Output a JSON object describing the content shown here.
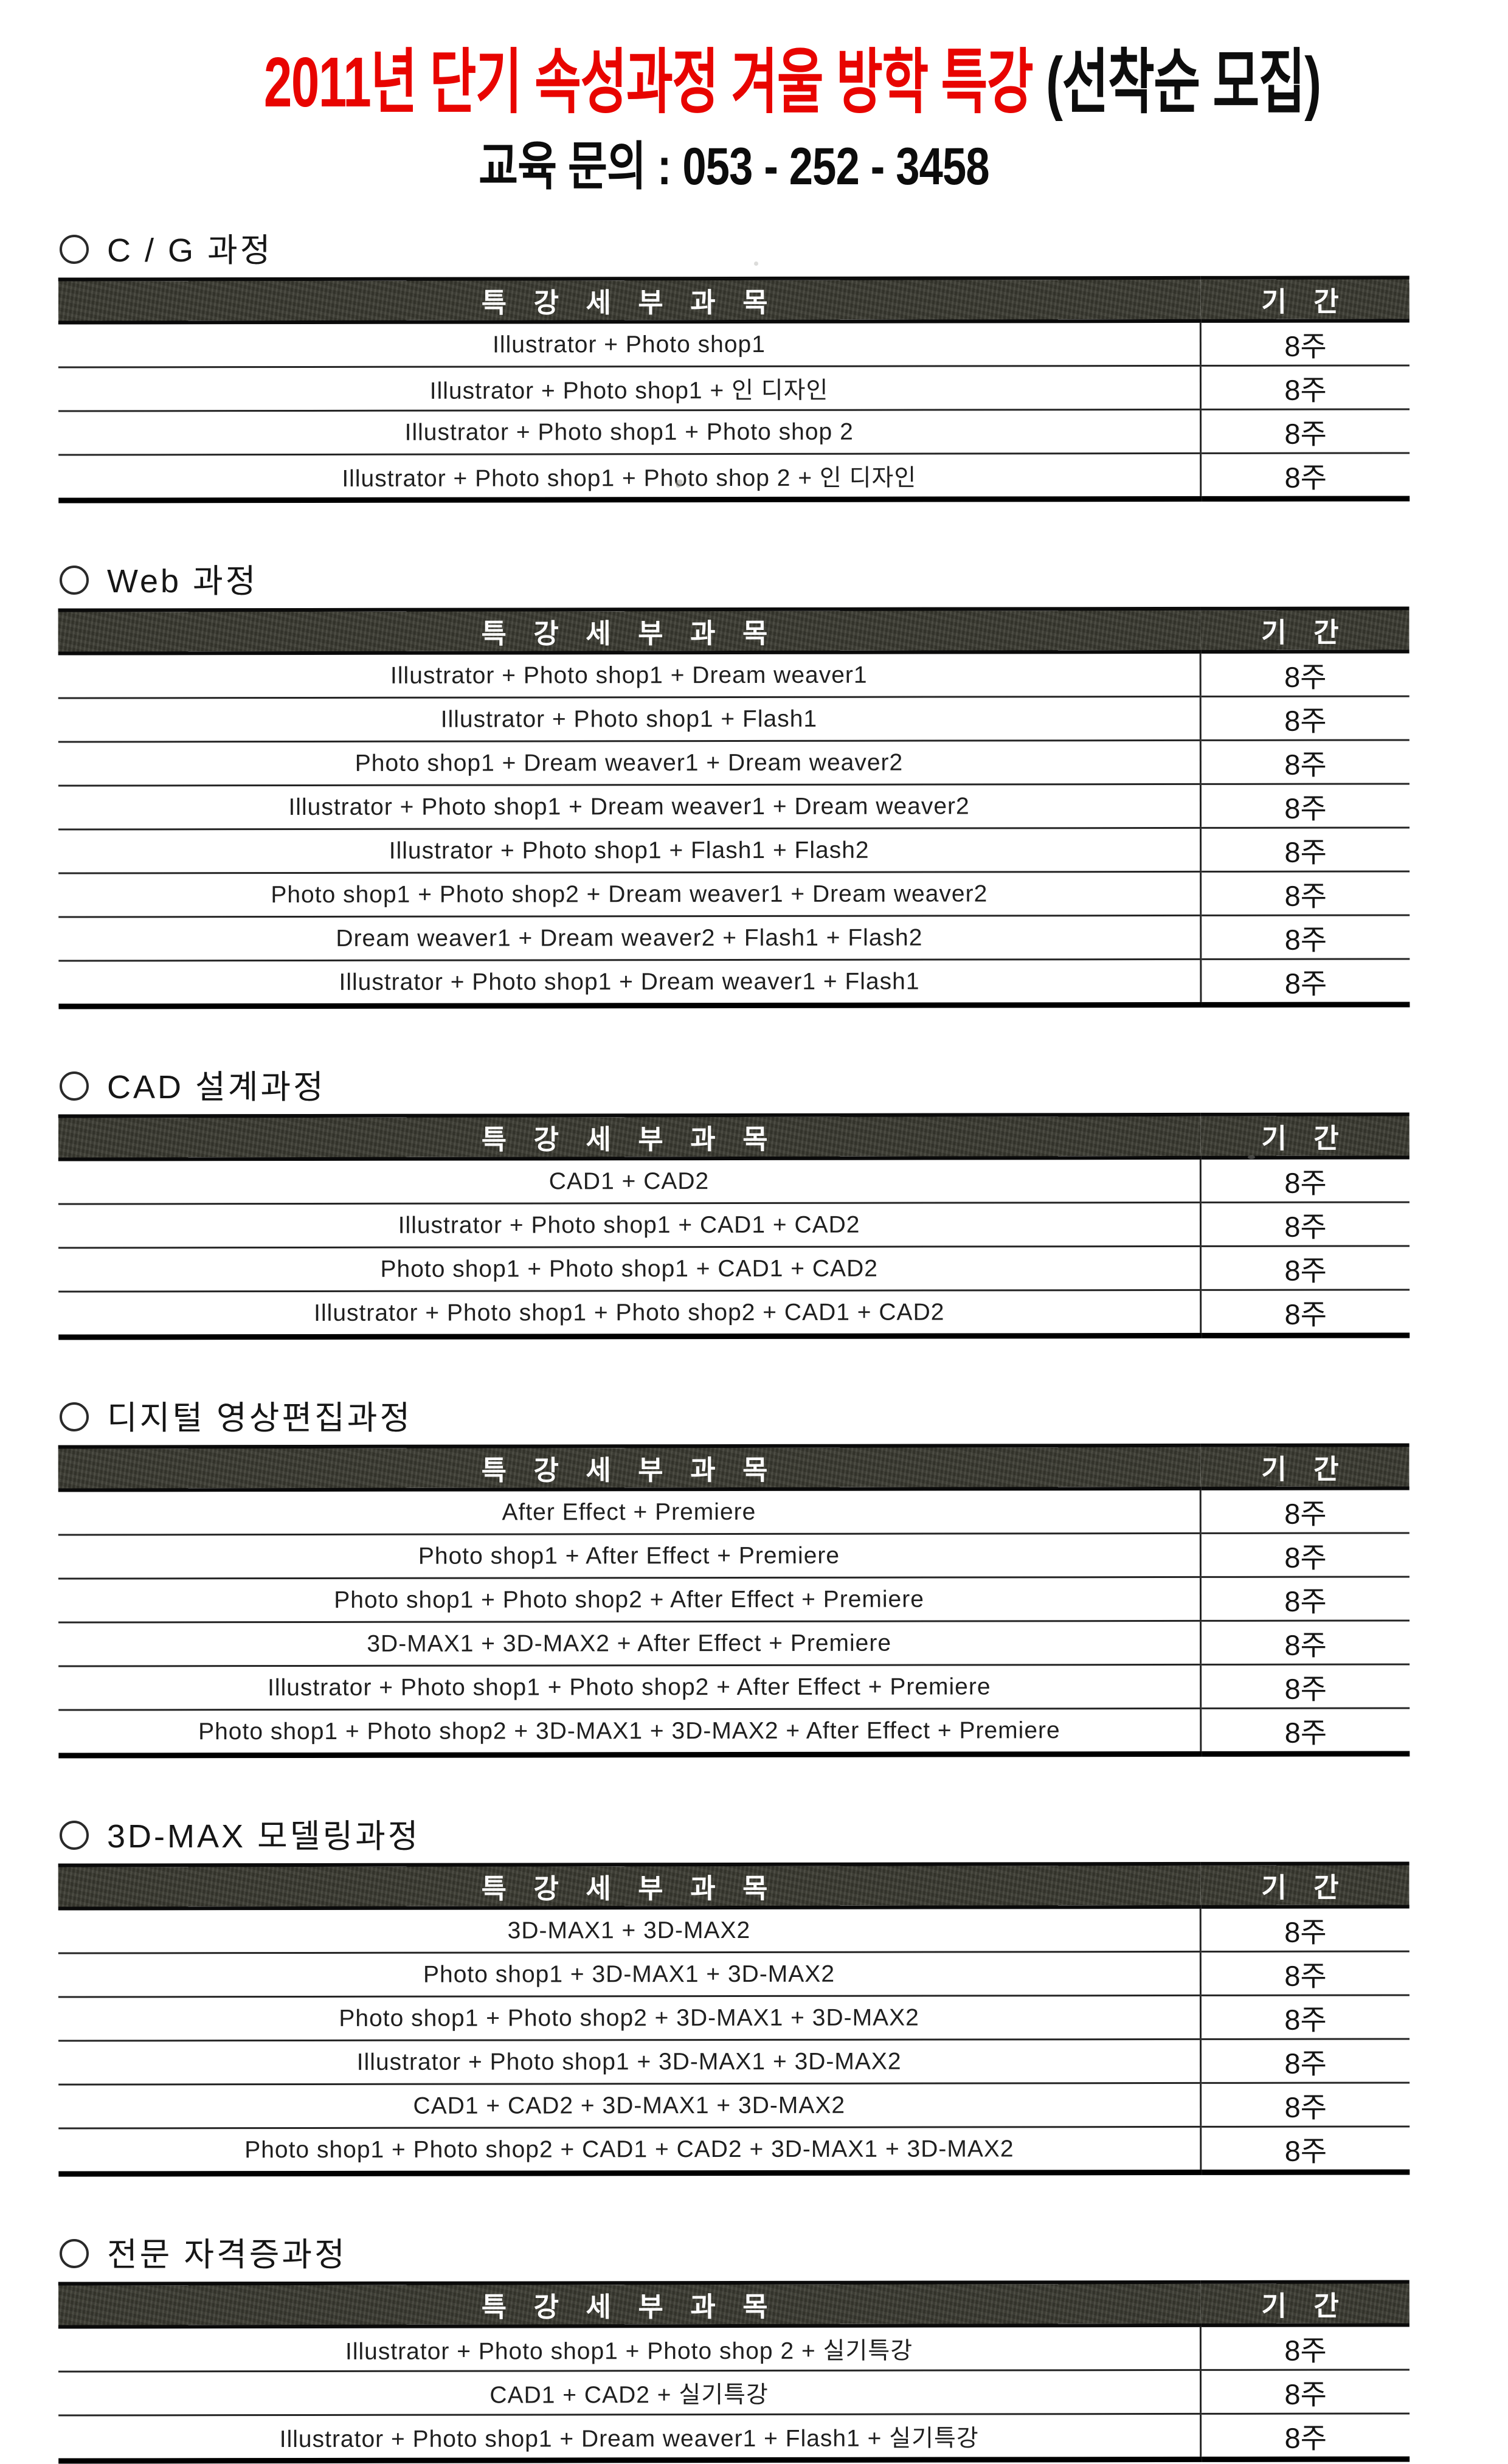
{
  "header": {
    "title_red": "2011년 단기 속성과정 겨울 방학 특강 ",
    "title_black": "(선착순 모집)",
    "subtitle": "교육 문의 : 053 - 252 - 3458"
  },
  "table_header": {
    "subject": "특 강 세 부 과 목",
    "period": "기 간"
  },
  "colors": {
    "accent_red": "#e80400",
    "header_bar": "#3b3b32",
    "line_dark": "#242424"
  },
  "sections": [
    {
      "title": "C / G 과정",
      "rows": [
        {
          "subject": "Illustrator + Photo shop1",
          "period": "8주"
        },
        {
          "subject": "Illustrator + Photo shop1 + 인 디자인",
          "period": "8주"
        },
        {
          "subject": "Illustrator + Photo shop1 + Photo shop 2",
          "period": "8주"
        },
        {
          "subject": "Illustrator + Photo shop1 + Photo shop 2 + 인 디자인",
          "period": "8주"
        }
      ]
    },
    {
      "title": "Web 과정",
      "rows": [
        {
          "subject": "Illustrator + Photo shop1 + Dream weaver1",
          "period": "8주"
        },
        {
          "subject": "Illustrator + Photo shop1 + Flash1",
          "period": "8주"
        },
        {
          "subject": "Photo shop1 + Dream weaver1 + Dream weaver2",
          "period": "8주"
        },
        {
          "subject": "Illustrator + Photo shop1 + Dream weaver1 + Dream weaver2",
          "period": "8주"
        },
        {
          "subject": "Illustrator + Photo shop1 + Flash1 + Flash2",
          "period": "8주"
        },
        {
          "subject": "Photo shop1 + Photo shop2 + Dream weaver1 + Dream weaver2",
          "period": "8주"
        },
        {
          "subject": "Dream weaver1 + Dream weaver2 + Flash1 + Flash2",
          "period": "8주"
        },
        {
          "subject": "Illustrator + Photo shop1 + Dream weaver1 + Flash1",
          "period": "8주"
        }
      ]
    },
    {
      "title": "CAD 설계과정",
      "rows": [
        {
          "subject": "CAD1 + CAD2",
          "period": "8주"
        },
        {
          "subject": "Illustrator + Photo shop1 + CAD1 + CAD2",
          "period": "8주"
        },
        {
          "subject": "Photo shop1 + Photo shop1 + CAD1 + CAD2",
          "period": "8주"
        },
        {
          "subject": "Illustrator + Photo shop1 + Photo shop2 + CAD1 + CAD2",
          "period": "8주"
        }
      ]
    },
    {
      "title": "디지털 영상편집과정",
      "rows": [
        {
          "subject": "After Effect + Premiere",
          "period": "8주"
        },
        {
          "subject": "Photo shop1 + After Effect + Premiere",
          "period": "8주"
        },
        {
          "subject": "Photo shop1 + Photo shop2 + After Effect + Premiere",
          "period": "8주"
        },
        {
          "subject": "3D-MAX1 + 3D-MAX2 + After Effect + Premiere",
          "period": "8주"
        },
        {
          "subject": "Illustrator + Photo shop1 + Photo shop2 + After Effect + Premiere",
          "period": "8주"
        },
        {
          "subject": "Photo shop1 + Photo shop2 + 3D-MAX1 + 3D-MAX2 + After Effect + Premiere",
          "period": "8주"
        }
      ]
    },
    {
      "title": "3D-MAX 모델링과정",
      "rows": [
        {
          "subject": "3D-MAX1 + 3D-MAX2",
          "period": "8주"
        },
        {
          "subject": "Photo shop1 + 3D-MAX1 + 3D-MAX2",
          "period": "8주"
        },
        {
          "subject": "Photo shop1 + Photo shop2 + 3D-MAX1 + 3D-MAX2",
          "period": "8주"
        },
        {
          "subject": "Illustrator + Photo shop1 + 3D-MAX1 + 3D-MAX2",
          "period": "8주"
        },
        {
          "subject": "CAD1 + CAD2 + 3D-MAX1 + 3D-MAX2",
          "period": "8주"
        },
        {
          "subject": "Photo shop1 + Photo shop2 + CAD1 + CAD2 + 3D-MAX1 + 3D-MAX2",
          "period": "8주"
        }
      ]
    },
    {
      "title": "전문 자격증과정",
      "rows": [
        {
          "subject": "Illustrator + Photo shop1 + Photo shop 2 + 실기특강",
          "period": "8주"
        },
        {
          "subject": "CAD1 + CAD2 + 실기특강",
          "period": "8주"
        },
        {
          "subject": "Illustrator + Photo shop1 + Dream weaver1 + Flash1 + 실기특강",
          "period": "8주"
        }
      ]
    }
  ]
}
